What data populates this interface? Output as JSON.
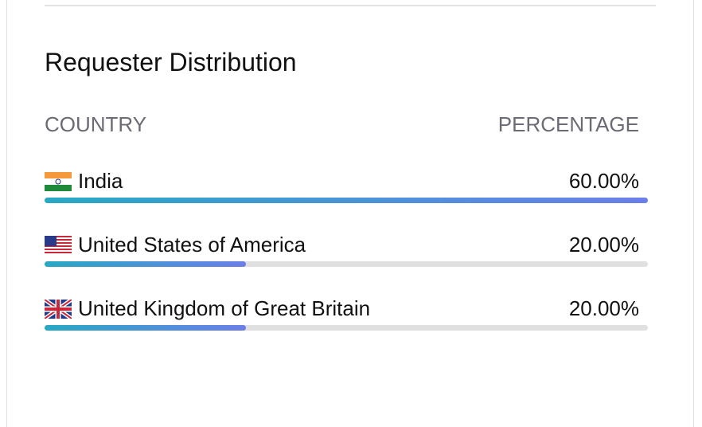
{
  "header": {
    "title": "Requester Distribution"
  },
  "table": {
    "columns": [
      "COUNTRY",
      "PERCENTAGE"
    ],
    "rows": [
      {
        "country": "India",
        "value": 60,
        "label": "60.00%"
      },
      {
        "country": "United States of America",
        "value": 20,
        "label": "20.00%"
      },
      {
        "country": "United Kingdom of Great Britain",
        "value": 20,
        "label": "20.00%"
      }
    ]
  }
}
